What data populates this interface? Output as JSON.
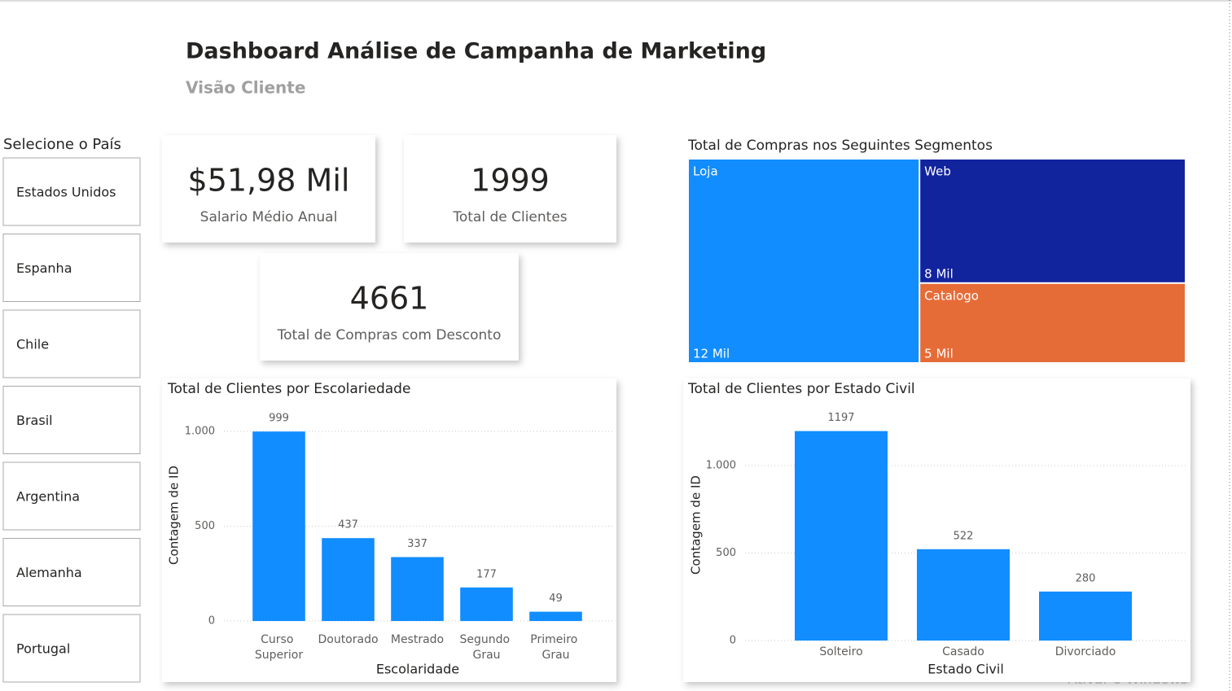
{
  "header": {
    "title": "Dashboard Análise de Campanha de Marketing",
    "subtitle": "Visão Cliente"
  },
  "slicer": {
    "title": "Selecione o País",
    "items": [
      "Estados Unidos",
      "Espanha",
      "Chile",
      "Brasil",
      "Argentina",
      "Alemanha",
      "Portugal"
    ]
  },
  "cards": [
    {
      "value": "$51,98 Mil",
      "label": "Salario Médio Anual"
    },
    {
      "value": 1999,
      "label": "Total de Clientes"
    },
    {
      "value": 4661,
      "label": "Total de Compras com Desconto"
    }
  ],
  "chart_data": [
    {
      "type": "treemap",
      "title": "Total de Compras nos Seguintes Segmentos",
      "categories": [
        "Loja",
        "Web",
        "Catalogo"
      ],
      "values": [
        12000,
        8400,
        5400
      ],
      "value_labels": [
        "12 Mil",
        "8 Mil",
        "5 Mil"
      ],
      "colors": [
        "#118dff",
        "#12239e",
        "#e66c37"
      ]
    },
    {
      "type": "bar",
      "title": "Total de Clientes por Escolariedade",
      "categories": [
        "Curso Superior",
        "Doutorado",
        "Mestrado",
        "Segundo Grau",
        "Primeiro Grau"
      ],
      "values": [
        999,
        437,
        337,
        177,
        49
      ],
      "color": "#118dff",
      "xlabel": "Escolaridade",
      "ylabel": "Contagem de ID",
      "ylim": [
        0,
        1060
      ],
      "yticks": [
        0,
        500,
        {
          "value": 1000,
          "label": "1.000"
        }
      ],
      "grid": true
    },
    {
      "type": "bar",
      "title": "Total de Clientes por Estado Civil",
      "categories": [
        "Solteiro",
        "Casado",
        "Divorciado"
      ],
      "values": [
        1197,
        522,
        280
      ],
      "color": "#118dff",
      "xlabel": "Estado Civil",
      "ylabel": "Contagem de ID",
      "ylim": [
        0,
        1200
      ],
      "yticks": [
        0,
        500,
        {
          "value": 1000,
          "label": "1.000"
        }
      ],
      "grid": true
    }
  ],
  "watermark": "Ativar o Windows"
}
